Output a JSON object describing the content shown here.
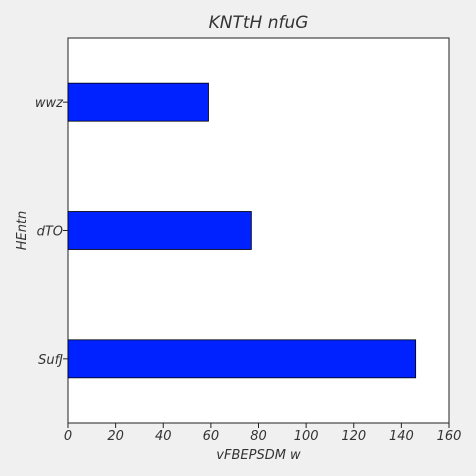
{
  "chart_data": {
    "type": "bar",
    "orientation": "horizontal",
    "title": "KNTtH nfuG",
    "xlabel": "vFBEPSDM w",
    "ylabel": "HEntn",
    "categories": [
      "wwz",
      "dTO",
      "SufJ"
    ],
    "values": [
      59,
      77,
      146
    ],
    "xlim": [
      0,
      160
    ],
    "xticks": [
      0,
      20,
      40,
      60,
      80,
      100,
      120,
      140,
      160
    ],
    "grid": false,
    "bar_color": "#0022ff",
    "bar_edge_color": "#000000",
    "background_color": "#f0f0f0",
    "plot_background_color": "#ffffff"
  }
}
